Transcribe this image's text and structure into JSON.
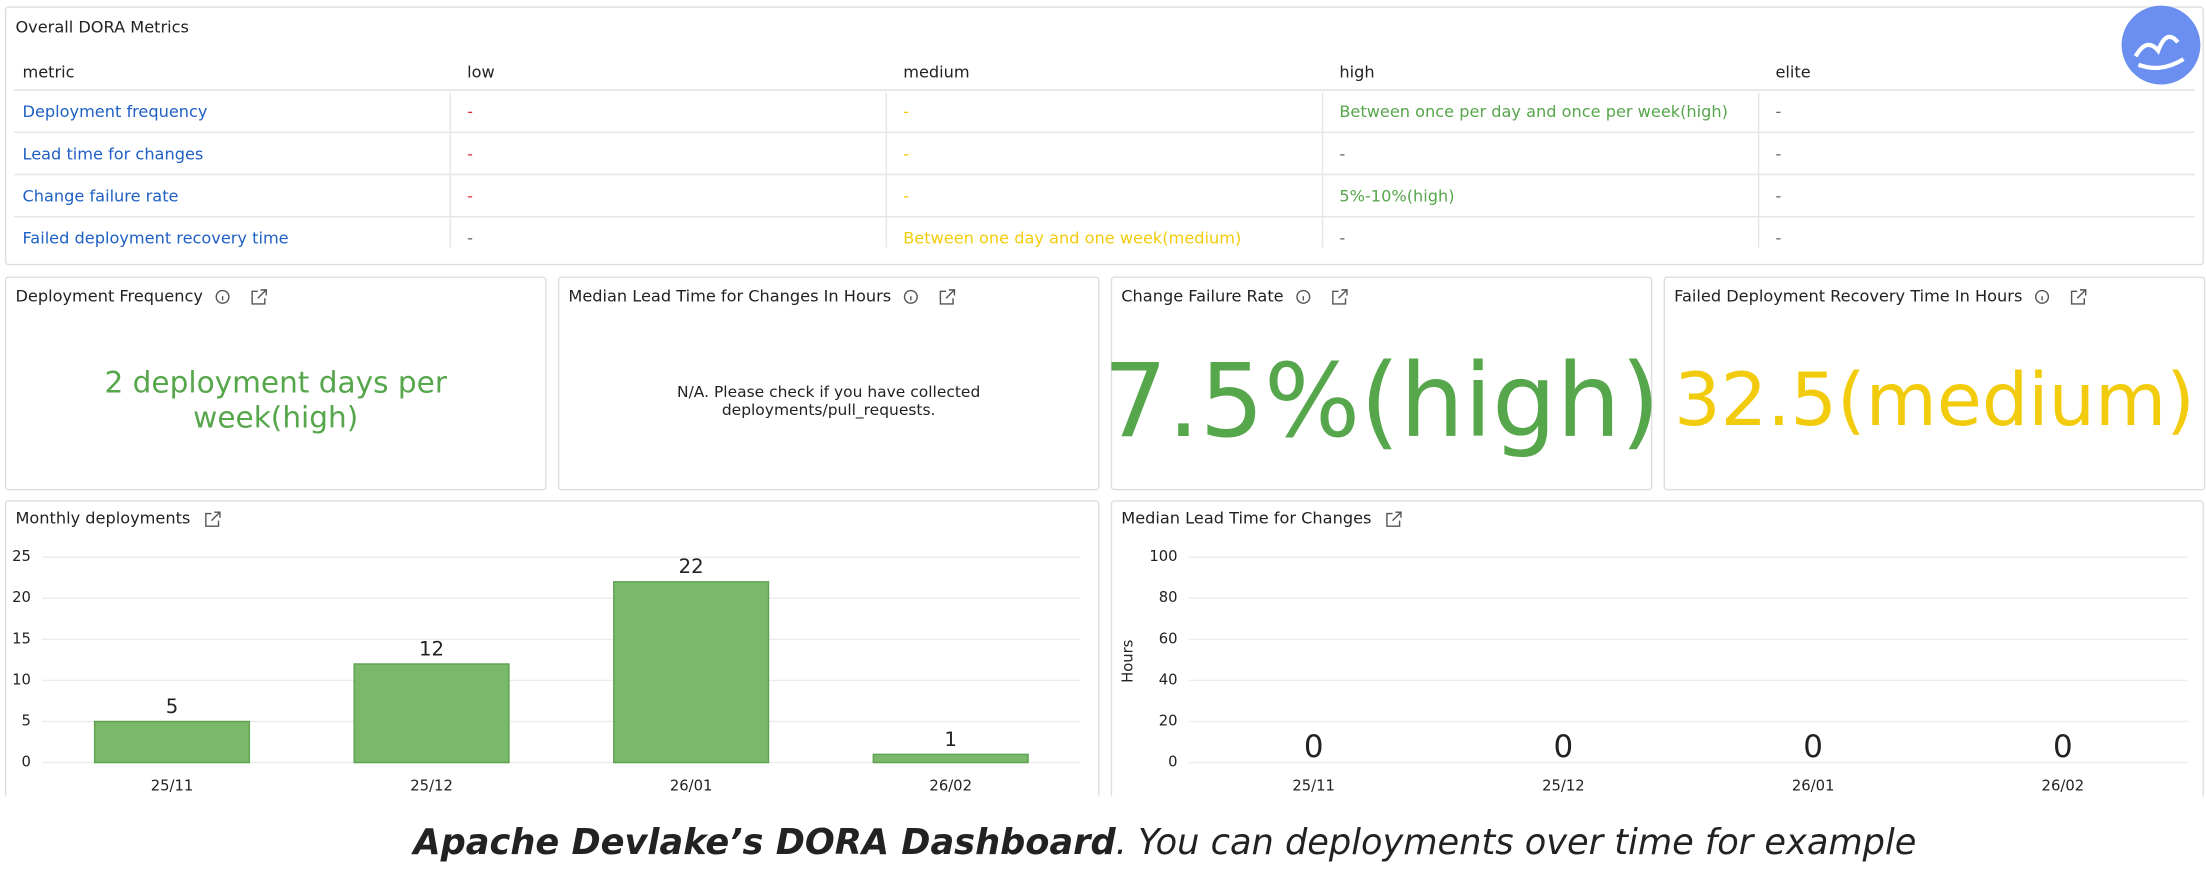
{
  "table_panel": {
    "title": "Overall DORA Metrics",
    "columns": [
      "metric",
      "low",
      "medium",
      "high",
      "elite"
    ],
    "rows": [
      [
        "Deployment frequency",
        "-",
        "-",
        "Between once per day and once per week(high)",
        "-"
      ],
      [
        "Lead time for changes",
        "-",
        "-",
        "-",
        "-"
      ],
      [
        "Change failure rate",
        "-",
        "-",
        "5%-10%(high)",
        "-"
      ],
      [
        "Failed deployment recovery time",
        "-",
        "Between one day and one week(medium)",
        "-",
        "-"
      ]
    ],
    "colors": [
      [
        "#1f60c4",
        "#e02f44",
        "#f2cc0c",
        "#56a64b",
        "#666666"
      ],
      [
        "#1f60c4",
        "#e02f44",
        "#f2cc0c",
        "#666666",
        "#666666"
      ],
      [
        "#1f60c4",
        "#e02f44",
        "#f2cc0c",
        "#56a64b",
        "#666666"
      ],
      [
        "#1f60c4",
        "#666666",
        "#f2cc0c",
        "#666666",
        "#666666"
      ]
    ]
  },
  "stat_panels": [
    {
      "title": "Deployment Frequency",
      "value": "2 deployment days per week(high)",
      "color": "#56a64b"
    },
    {
      "title": "Median Lead Time for Changes In Hours",
      "value": "N/A. Please check if you have collected deployments/pull_requests.",
      "color": "#222222"
    },
    {
      "title": "Change Failure Rate",
      "value": "7.5%(high)",
      "color": "#56a64b"
    },
    {
      "title": "Failed Deployment Recovery Time In Hours",
      "value": "32.5(medium)",
      "color": "#f2cc0c"
    }
  ],
  "charts": [
    {
      "type": "bar",
      "title": "Monthly deployments",
      "categories": [
        "25/11",
        "25/12",
        "26/01",
        "26/02"
      ],
      "values": [
        5,
        12,
        22,
        1
      ],
      "ylim": [
        0,
        25
      ],
      "yticks": [
        0,
        5,
        10,
        15,
        20,
        25
      ],
      "color": "#7ab86a",
      "grid": true
    },
    {
      "type": "bar",
      "title": "Median Lead Time for Changes",
      "ylabel": "Hours",
      "categories": [
        "25/11",
        "25/12",
        "26/01",
        "26/02"
      ],
      "values": [
        0,
        0,
        0,
        0
      ],
      "ylim": [
        0,
        100
      ],
      "yticks": [
        0,
        20,
        40,
        60,
        80,
        100
      ],
      "color": "#7ab86a",
      "grid": true
    }
  ],
  "caption": {
    "bold": "Apache Devlake’s DORA Dashboard",
    "rest": ". You can deployments over time for example"
  }
}
